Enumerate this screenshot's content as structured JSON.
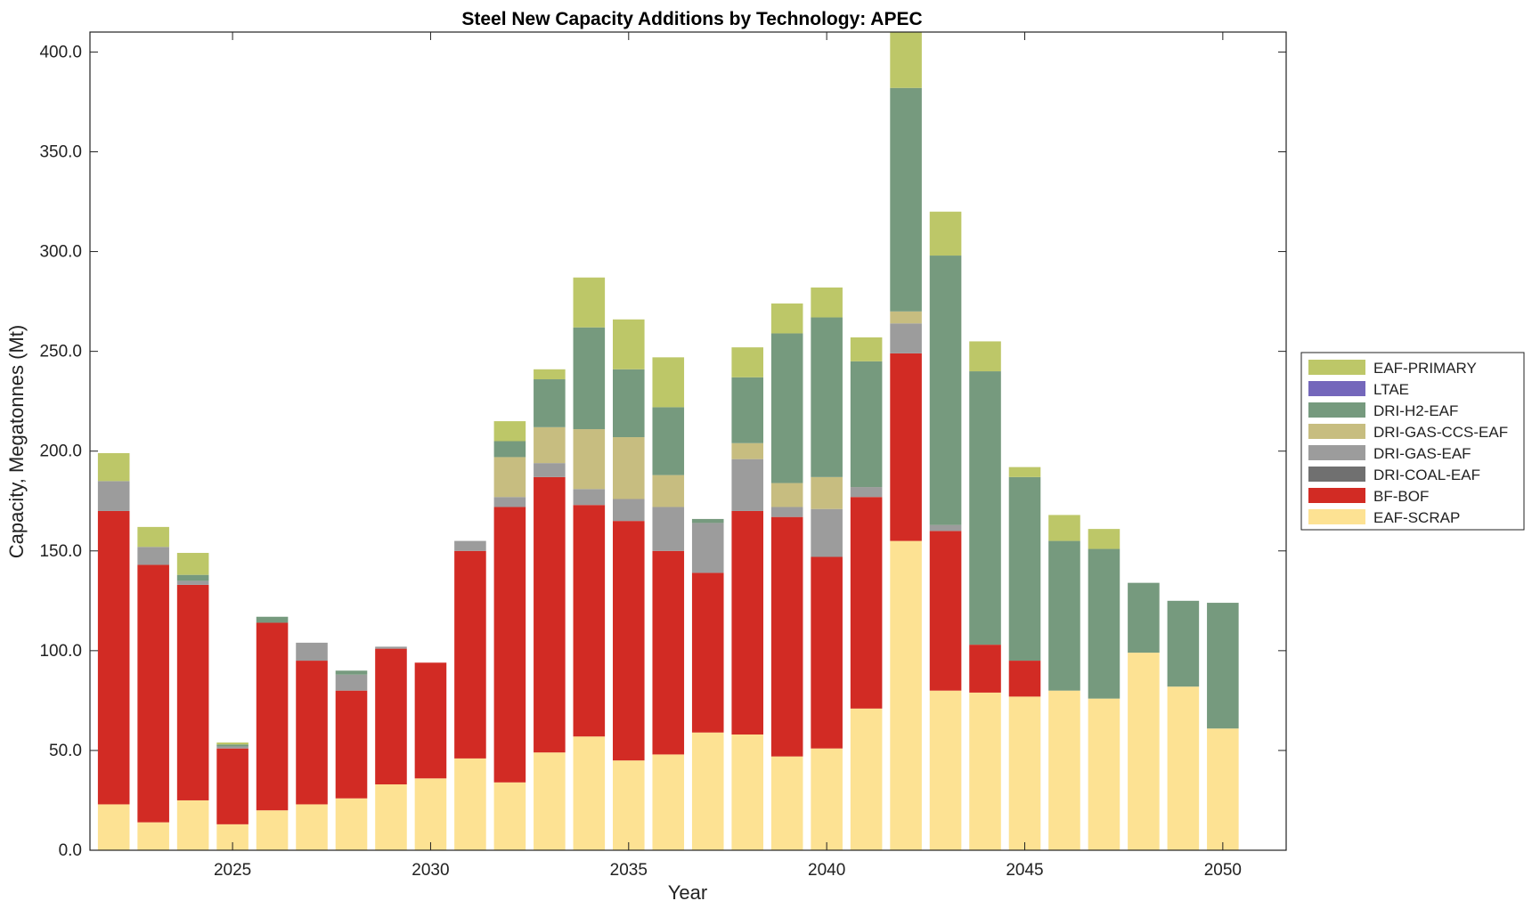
{
  "chart_data": {
    "type": "bar",
    "stacked": true,
    "title": "Steel New Capacity Additions by Technology: APEC",
    "xlabel": "Year",
    "ylabel": "Capacity, Megatonnes (Mt)",
    "ylim": [
      0,
      410
    ],
    "xlim": [
      2021.4,
      2051.6
    ],
    "yticks": [
      0,
      50,
      100,
      150,
      200,
      250,
      300,
      350,
      400
    ],
    "ytick_labels": [
      "0.0",
      "50.0",
      "100.0",
      "150.0",
      "200.0",
      "250.0",
      "300.0",
      "350.0",
      "400.0"
    ],
    "xticks": [
      2025,
      2030,
      2035,
      2040,
      2045,
      2050
    ],
    "xtick_labels": [
      "2025",
      "2030",
      "2035",
      "2040",
      "2045",
      "2050"
    ],
    "legend_position": "right",
    "grid": false,
    "x": [
      2022,
      2023,
      2024,
      2025,
      2026,
      2027,
      2028,
      2029,
      2030,
      2031,
      2032,
      2033,
      2034,
      2035,
      2036,
      2037,
      2038,
      2039,
      2040,
      2041,
      2042,
      2043,
      2044,
      2045,
      2046,
      2047,
      2048,
      2049,
      2050
    ],
    "series": [
      {
        "name": "EAF-SCRAP",
        "color": "#fde293",
        "values": [
          23,
          14,
          25,
          13,
          20,
          23,
          26,
          33,
          36,
          46,
          34,
          49,
          57,
          45,
          48,
          59,
          58,
          47,
          51,
          71,
          155,
          80,
          79,
          77,
          80,
          76,
          99,
          82,
          61
        ]
      },
      {
        "name": "BF-BOF",
        "color": "#d22b24",
        "values": [
          147,
          129,
          108,
          38,
          94,
          72,
          54,
          68,
          58,
          104,
          138,
          138,
          116,
          120,
          102,
          80,
          112,
          120,
          96,
          106,
          94,
          80,
          24,
          18,
          0,
          0,
          0,
          0,
          0
        ]
      },
      {
        "name": "DRI-COAL-EAF",
        "color": "#707070",
        "values": [
          0,
          0,
          0,
          0,
          0,
          0,
          0,
          0,
          0,
          0,
          0,
          0,
          0,
          0,
          0,
          0,
          0,
          0,
          0,
          0,
          0,
          0,
          0,
          0,
          0,
          0,
          0,
          0,
          0
        ]
      },
      {
        "name": "DRI-GAS-EAF",
        "color": "#9c9c9c",
        "values": [
          15,
          9,
          2,
          1,
          0,
          9,
          8,
          1,
          0,
          5,
          5,
          7,
          8,
          11,
          22,
          25,
          26,
          5,
          24,
          5,
          15,
          3,
          0,
          0,
          0,
          0,
          0,
          0,
          0
        ]
      },
      {
        "name": "DRI-GAS-CCS-EAF",
        "color": "#c7bd80",
        "values": [
          0,
          0,
          0,
          0,
          0,
          0,
          0,
          0,
          0,
          0,
          20,
          18,
          30,
          31,
          16,
          0,
          8,
          12,
          16,
          0,
          6,
          0,
          0,
          0,
          0,
          0,
          0,
          0,
          0
        ]
      },
      {
        "name": "DRI-H2-EAF",
        "color": "#769a7e",
        "values": [
          0,
          0,
          3,
          1,
          3,
          0,
          2,
          0,
          0,
          0,
          8,
          24,
          51,
          34,
          34,
          2,
          33,
          75,
          80,
          63,
          112,
          135,
          137,
          92,
          75,
          75,
          35,
          43,
          63
        ]
      },
      {
        "name": "LTAE",
        "color": "#7467bb",
        "values": [
          0,
          0,
          0,
          0,
          0,
          0,
          0,
          0,
          0,
          0,
          0,
          0,
          0,
          0,
          0,
          0,
          0,
          0,
          0,
          0,
          0,
          0,
          0,
          0,
          0,
          0,
          0,
          0,
          0
        ]
      },
      {
        "name": "EAF-PRIMARY",
        "color": "#bdc768",
        "values": [
          14,
          10,
          11,
          1,
          0,
          0,
          0,
          0,
          0,
          0,
          10,
          5,
          25,
          25,
          25,
          0,
          15,
          15,
          15,
          12,
          30,
          22,
          15,
          5,
          13,
          10,
          0,
          0,
          0
        ]
      }
    ]
  }
}
